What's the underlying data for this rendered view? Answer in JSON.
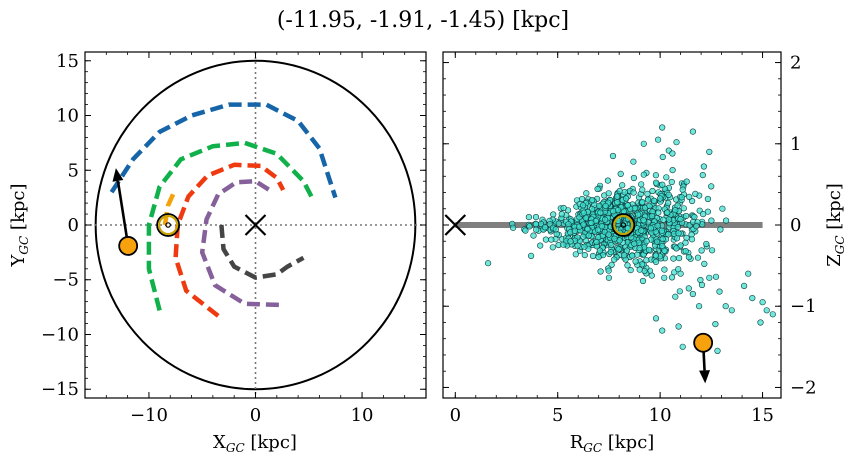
{
  "title": "(-11.95, -1.91, -1.45) [kpc]",
  "colors": {
    "spiral_blue": "#1565a8",
    "spiral_green": "#10b04a",
    "spiral_orange": "#f5a20a",
    "spiral_red": "#ef3a10",
    "spiral_purple": "#85609b",
    "spiral_gray": "#454545",
    "marker_orange": "#f7a10d",
    "scatter_fill": "#40e0d0",
    "sun_ring": "#c8a400",
    "plane_line": "#7f7f7f"
  },
  "chart_data": [
    {
      "type": "line",
      "panel": "left",
      "xlabel": "X",
      "xlabel_sub": "GC",
      "xlabel_unit": " [kpc]",
      "ylabel": "Y",
      "ylabel_sub": "GC",
      "ylabel_unit": " [kpc]",
      "xlim": [
        -16,
        16
      ],
      "ylim": [
        -15.8,
        15.8
      ],
      "xticks": [
        -10,
        0,
        10
      ],
      "xtick_labels": [
        "−10",
        "0",
        "10"
      ],
      "yticks": [
        -15,
        -10,
        -5,
        0,
        5,
        10,
        15
      ],
      "ytick_labels": [
        "−15",
        "−10",
        "−5",
        "0",
        "5",
        "10",
        "15"
      ],
      "boundary_circle_radius": 15,
      "crosshair": [
        0,
        0
      ],
      "series": [
        {
          "color": "spiral_blue",
          "points": [
            [
              -13.5,
              3
            ],
            [
              -11.5,
              6
            ],
            [
              -9,
              8.5
            ],
            [
              -6,
              10
            ],
            [
              -2.5,
              11
            ],
            [
              1,
              11
            ],
            [
              4,
              9.5
            ],
            [
              6,
              7
            ],
            [
              7.5,
              2.5
            ]
          ]
        },
        {
          "color": "spiral_green",
          "points": [
            [
              -9,
              -7.8
            ],
            [
              -10,
              -4
            ],
            [
              -10,
              0
            ],
            [
              -9,
              3.5
            ],
            [
              -7,
              6
            ],
            [
              -4,
              7.2
            ],
            [
              -1,
              7.5
            ],
            [
              2,
              6.5
            ],
            [
              4.5,
              4
            ],
            [
              5.3,
              2.5
            ]
          ]
        },
        {
          "color": "spiral_orange",
          "points": [
            [
              -8.5,
              0
            ],
            [
              -8.2,
              1.8
            ],
            [
              -7.5,
              3.3
            ]
          ]
        },
        {
          "color": "spiral_red",
          "points": [
            [
              -3.5,
              -8.3
            ],
            [
              -6.5,
              -6
            ],
            [
              -7.5,
              -3
            ],
            [
              -7.3,
              0
            ],
            [
              -6.3,
              2.6
            ],
            [
              -4.5,
              4.5
            ],
            [
              -2,
              5.5
            ],
            [
              0.5,
              5.4
            ],
            [
              2,
              4.3
            ],
            [
              2.6,
              3.2
            ]
          ]
        },
        {
          "color": "spiral_purple",
          "points": [
            [
              2.2,
              -7.3
            ],
            [
              -1,
              -7.2
            ],
            [
              -3.8,
              -5.5
            ],
            [
              -5,
              -2.5
            ],
            [
              -4.6,
              0.5
            ],
            [
              -3.5,
              2.8
            ],
            [
              -1.8,
              3.9
            ],
            [
              0,
              4
            ],
            [
              1.3,
              3.2
            ]
          ]
        },
        {
          "color": "spiral_gray",
          "points": [
            [
              -3.2,
              0
            ],
            [
              -3,
              -2.2
            ],
            [
              -2,
              -3.8
            ],
            [
              0,
              -4.8
            ],
            [
              2,
              -4.5
            ],
            [
              3,
              -3.8
            ],
            [
              4.5,
              -3
            ]
          ]
        }
      ],
      "sun": [
        -8.2,
        0
      ],
      "object": [
        -11.95,
        -1.91
      ],
      "velocity_arrow_to": [
        -13.1,
        5.2
      ]
    },
    {
      "type": "scatter",
      "panel": "right",
      "xlabel": "R",
      "xlabel_sub": "GC",
      "xlabel_unit": " [kpc]",
      "ylabel": "Z",
      "ylabel_sub": "GC",
      "ylabel_unit": " [kpc]",
      "xlim": [
        -0.6,
        15.9
      ],
      "ylim": [
        -2.13,
        2.13
      ],
      "xticks": [
        0,
        5,
        10,
        15
      ],
      "xtick_labels": [
        "0",
        "5",
        "10",
        "15"
      ],
      "yticks": [
        -2,
        -1,
        0,
        1,
        2
      ],
      "ytick_labels": [
        "−2",
        "−1",
        "0",
        "1",
        "2"
      ],
      "galactic_plane_x": [
        0,
        15
      ],
      "center_marker": [
        0,
        0
      ],
      "sun": [
        8.2,
        0
      ],
      "object": [
        12.1,
        -1.45
      ],
      "velocity_arrow_to": [
        12.2,
        -1.95
      ],
      "outlier_points": [
        [
          10.1,
          1.2
        ],
        [
          11.6,
          1.15
        ],
        [
          9.2,
          1.0
        ],
        [
          10.6,
          0.88
        ],
        [
          9.9,
          1.05
        ],
        [
          7.7,
          0.85
        ],
        [
          12.4,
          0.9
        ],
        [
          10.8,
          1.02
        ],
        [
          1.6,
          -0.47
        ],
        [
          3.7,
          -0.38
        ],
        [
          7.5,
          -0.65
        ],
        [
          9.0,
          -0.55
        ],
        [
          10.2,
          -0.65
        ],
        [
          11.0,
          -0.6
        ],
        [
          14.1,
          -0.75
        ],
        [
          14.5,
          -0.9
        ],
        [
          15.0,
          -0.95
        ],
        [
          15.2,
          -1.05
        ],
        [
          15.5,
          -1.1
        ],
        [
          14.9,
          -1.2
        ],
        [
          13.2,
          -1.0
        ],
        [
          12.9,
          -0.82
        ],
        [
          11.6,
          -0.85
        ],
        [
          11.9,
          -1.0
        ],
        [
          9.8,
          -1.15
        ],
        [
          10.1,
          -1.3
        ],
        [
          10.9,
          -1.25
        ],
        [
          12.7,
          -1.22
        ],
        [
          11.1,
          -1.5
        ],
        [
          12.8,
          -1.55
        ],
        [
          13.5,
          -1.05
        ],
        [
          14.3,
          -0.6
        ],
        [
          11.4,
          -0.78
        ],
        [
          8.8,
          -0.45
        ],
        [
          12.4,
          -0.65
        ]
      ],
      "main_cloud": {
        "x_range": [
          2.2,
          13.8
        ],
        "center_x": 8.2,
        "count": 900
      }
    }
  ]
}
